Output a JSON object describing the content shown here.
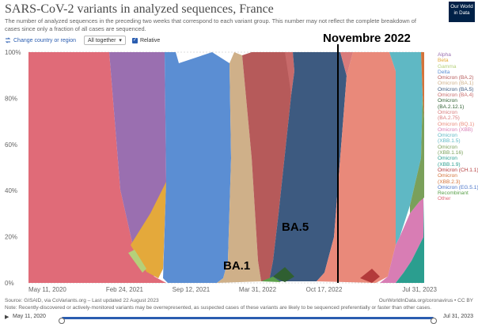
{
  "header": {
    "title": "SARS-CoV-2 variants in analyzed sequences, France",
    "subtitle": "The number of analyzed sequences in the preceding two weeks that correspond to each variant group. This number may not reflect the complete breakdown of cases since only a fraction of all cases are sequenced.",
    "logo": "Our World in Data"
  },
  "controls": {
    "change_country": "Change country or region",
    "dropdown": "All together",
    "relative": "Relative"
  },
  "annotations": {
    "novembre": "Novembre 2022",
    "ba1": "BA.1",
    "ba5": "BA.5"
  },
  "chart_data": {
    "type": "area",
    "stacking": "relative",
    "y_ticks": [
      "0%",
      "20%",
      "40%",
      "60%",
      "80%",
      "100%"
    ],
    "x_ticks": [
      "May 11, 2020",
      "Feb 24, 2021",
      "Sep 12, 2021",
      "Mar 31, 2022",
      "Oct 17, 2022",
      "Jul 31, 2023"
    ],
    "x_dates": [
      "2020-05-11",
      "2021-02-24",
      "2021-09-12",
      "2022-03-31",
      "2022-10-17",
      "2023-07-31"
    ],
    "legend": [
      {
        "label": "Alpha",
        "color": "#9a6fb0"
      },
      {
        "label": "Beta",
        "color": "#e4a93b"
      },
      {
        "label": "Gamma",
        "color": "#b5d07a"
      },
      {
        "label": "Delta",
        "color": "#5b8ed3"
      },
      {
        "label": "Omicron (BA.2)",
        "color": "#b65a5a"
      },
      {
        "label": "Omicron (BA.1)",
        "color": "#cfb089"
      },
      {
        "label": "Omicron (BA.5)",
        "color": "#3d5a80"
      },
      {
        "label": "Omicron (BA.4)",
        "color": "#c76a6a"
      },
      {
        "label": "Omicron (BA.2.12.1)",
        "color": "#2f5f31"
      },
      {
        "label": "Omicron (BA.2.75)",
        "color": "#d97b7b"
      },
      {
        "label": "Omicron (BQ.1)",
        "color": "#e9897a"
      },
      {
        "label": "Omicron (XBB)",
        "color": "#d87db4"
      },
      {
        "label": "Omicron (XBB.1.5)",
        "color": "#5fb8c4"
      },
      {
        "label": "Omicron (XBB.1.16)",
        "color": "#7aa05a"
      },
      {
        "label": "Omicron (XBB.1.9)",
        "color": "#2b9e8f"
      },
      {
        "label": "Omicron (CH.1.1)",
        "color": "#b33a3a"
      },
      {
        "label": "Omicron (XBB.2.3)",
        "color": "#d4733a"
      },
      {
        "label": "Omicron (EG.5.1)",
        "color": "#4a74c9"
      },
      {
        "label": "Recombinant",
        "color": "#5aa04a"
      },
      {
        "label": "Other",
        "color": "#e06b78"
      }
    ]
  },
  "footer": {
    "source": "Source: GISAID, via CoVariants.org – Last updated 22 August 2023",
    "url": "OurWorldInData.org/coronavirus • CC BY",
    "note": "Note: Recently-discovered or actively-monitored variants may be overrepresented, as suspected cases of these variants are likely to be sequenced preferentially or faster than other cases."
  },
  "timeline": {
    "start": "May 11, 2020",
    "end": "Jul 31, 2023"
  }
}
